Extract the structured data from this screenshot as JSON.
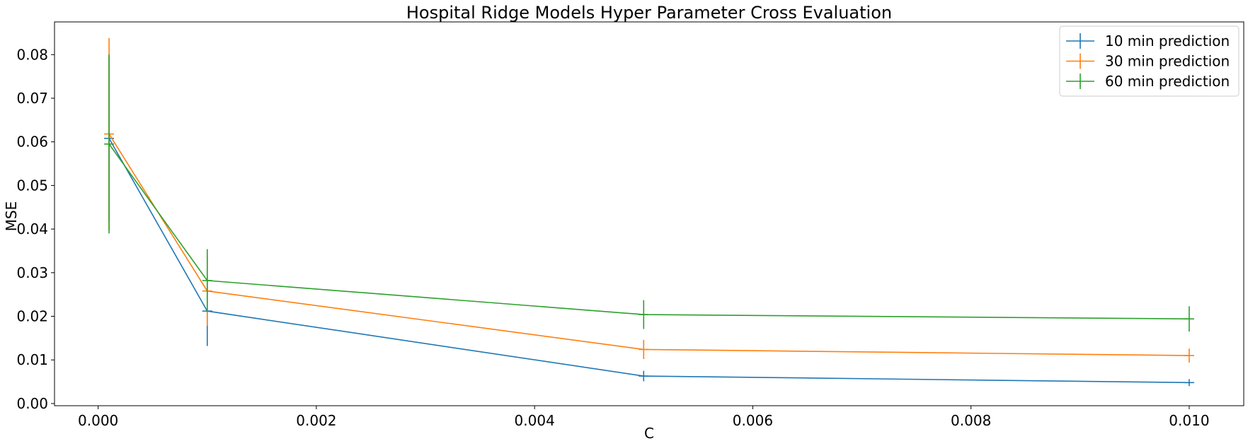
{
  "chart_data": {
    "type": "line",
    "title": "Hospital Ridge Models Hyper Parameter Cross Evaluation",
    "xlabel": "C",
    "ylabel": "MSE",
    "xlim": [
      -0.0004,
      0.0105
    ],
    "ylim": [
      -0.0005,
      0.0875
    ],
    "xticks": [
      0.0,
      0.002,
      0.004,
      0.006,
      0.008,
      0.01
    ],
    "xtick_labels": [
      "0.000",
      "0.002",
      "0.004",
      "0.006",
      "0.008",
      "0.010"
    ],
    "yticks": [
      0.0,
      0.01,
      0.02,
      0.03,
      0.04,
      0.05,
      0.06,
      0.07,
      0.08
    ],
    "ytick_labels": [
      "0.00",
      "0.01",
      "0.02",
      "0.03",
      "0.04",
      "0.05",
      "0.06",
      "0.07",
      "0.08"
    ],
    "grid": false,
    "legend_position": "top-right",
    "x": [
      0.0001,
      0.001,
      0.005,
      0.01
    ],
    "series": [
      {
        "name": "10 min prediction",
        "color": "#1f77b4",
        "values": [
          0.0608,
          0.0212,
          0.0063,
          0.0048
        ],
        "errors": [
          0.019,
          0.008,
          0.0012,
          0.0008
        ]
      },
      {
        "name": "30 min prediction",
        "color": "#ff7f0e",
        "values": [
          0.0618,
          0.0258,
          0.0124,
          0.011
        ],
        "errors": [
          0.022,
          0.008,
          0.0022,
          0.0016
        ]
      },
      {
        "name": "60 min prediction",
        "color": "#2ca02c",
        "values": [
          0.0595,
          0.0282,
          0.0204,
          0.0194
        ],
        "errors": [
          0.0205,
          0.0072,
          0.0033,
          0.0029
        ]
      }
    ]
  }
}
